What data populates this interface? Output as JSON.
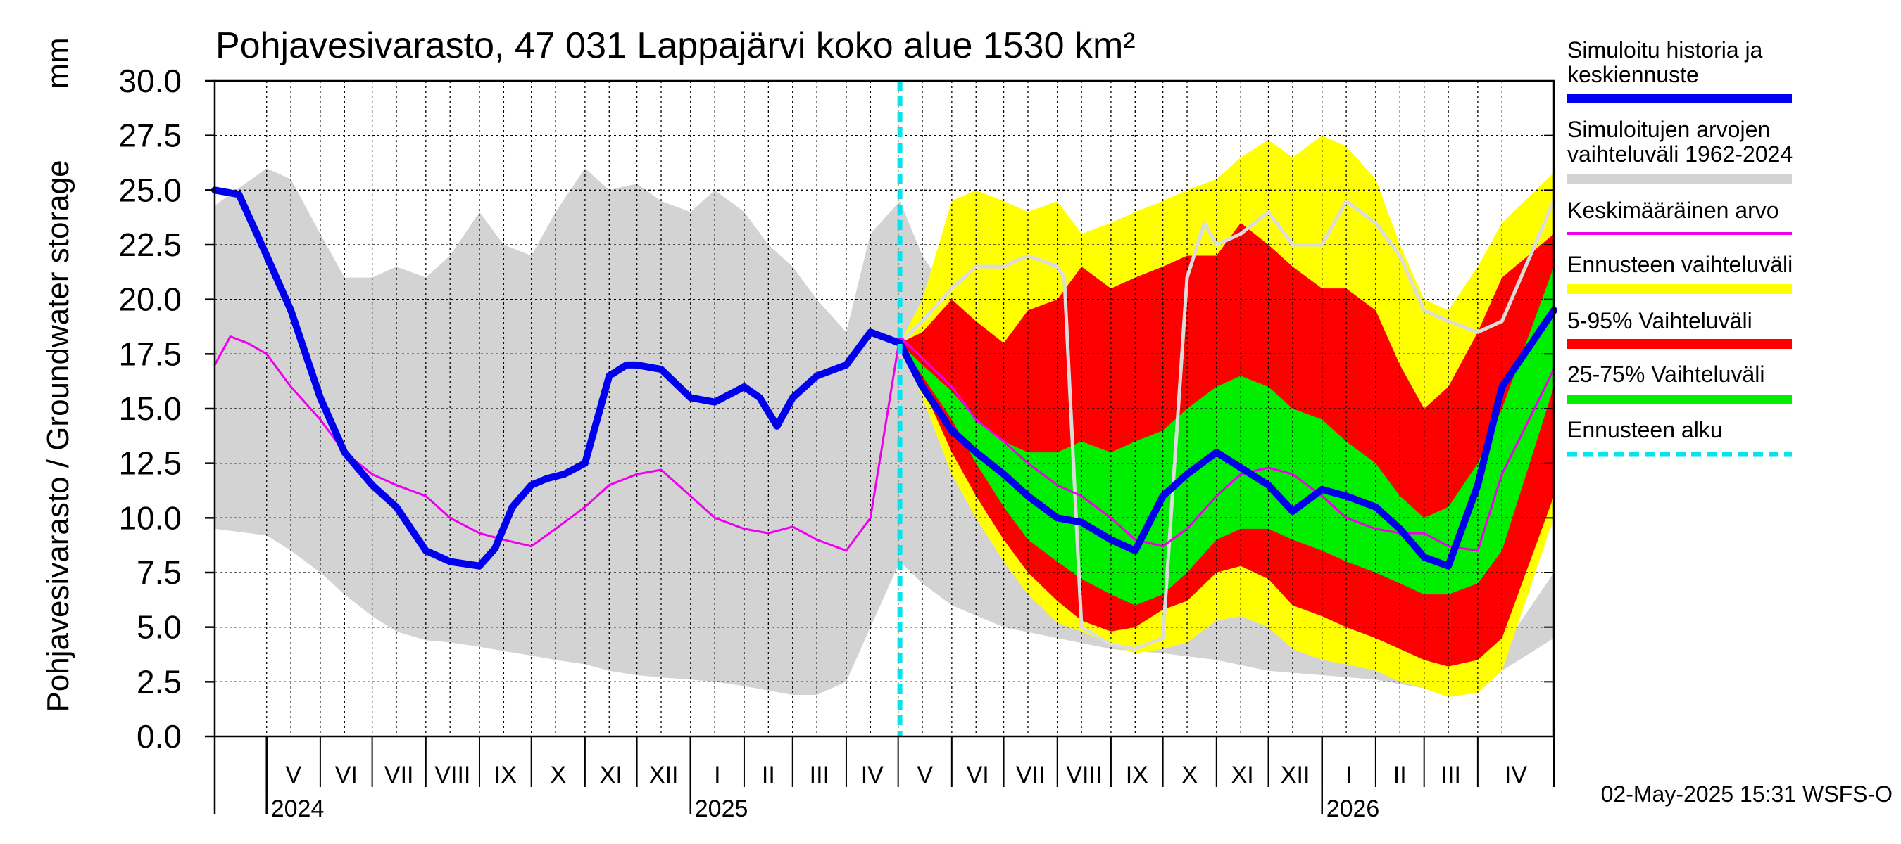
{
  "chart_data": {
    "type": "area",
    "title": "Pohjavesivarasto, 47 031 Lappajärvi koko alue 1530 km²",
    "ylabel": "Pohjavesivarasto / Groundwater storage",
    "yunit": "mm",
    "ylim": [
      0,
      30
    ],
    "yticks": [
      "0.0",
      "2.5",
      "5.0",
      "7.5",
      "10.0",
      "12.5",
      "15.0",
      "17.5",
      "20.0",
      "22.5",
      "25.0",
      "27.5",
      "30.0"
    ],
    "x_start": "2024-04-01",
    "x_end": "2026-05-15",
    "forecast_start": "2025-05-02",
    "months": [
      {
        "label": "V",
        "start": "2024-05-01"
      },
      {
        "label": "VI",
        "start": "2024-06-01"
      },
      {
        "label": "VII",
        "start": "2024-07-01"
      },
      {
        "label": "VIII",
        "start": "2024-08-01"
      },
      {
        "label": "IX",
        "start": "2024-09-01"
      },
      {
        "label": "X",
        "start": "2024-10-01"
      },
      {
        "label": "XI",
        "start": "2024-11-01"
      },
      {
        "label": "XII",
        "start": "2024-12-01"
      },
      {
        "label": "I",
        "start": "2025-01-01"
      },
      {
        "label": "II",
        "start": "2025-02-01"
      },
      {
        "label": "III",
        "start": "2025-03-01"
      },
      {
        "label": "IV",
        "start": "2025-04-01"
      },
      {
        "label": "V",
        "start": "2025-05-01"
      },
      {
        "label": "VI",
        "start": "2025-06-01"
      },
      {
        "label": "VII",
        "start": "2025-07-01"
      },
      {
        "label": "VIII",
        "start": "2025-08-01"
      },
      {
        "label": "IX",
        "start": "2025-09-01"
      },
      {
        "label": "X",
        "start": "2025-10-01"
      },
      {
        "label": "XI",
        "start": "2025-11-01"
      },
      {
        "label": "XII",
        "start": "2025-12-01"
      },
      {
        "label": "I",
        "start": "2026-01-01"
      },
      {
        "label": "II",
        "start": "2026-02-01"
      },
      {
        "label": "III",
        "start": "2026-03-01"
      },
      {
        "label": "IV",
        "start": "2026-04-01"
      }
    ],
    "years": [
      {
        "label": "2024",
        "start": "2024-05-01"
      },
      {
        "label": "2025",
        "start": "2025-01-01"
      },
      {
        "label": "2026",
        "start": "2026-01-01"
      }
    ],
    "bands": [
      {
        "key": "hist_range",
        "color": "#d3d3d3",
        "x": [
          "2024-04-01",
          "2024-05-01",
          "2024-05-15",
          "2024-06-01",
          "2024-06-15",
          "2024-07-01",
          "2024-07-15",
          "2024-08-01",
          "2024-08-15",
          "2024-09-01",
          "2024-09-15",
          "2024-10-01",
          "2024-10-15",
          "2024-11-01",
          "2024-11-15",
          "2024-12-01",
          "2024-12-15",
          "2025-01-01",
          "2025-01-15",
          "2025-02-01",
          "2025-02-15",
          "2025-03-01",
          "2025-03-15",
          "2025-04-01",
          "2025-04-15",
          "2025-05-02",
          "2025-05-15",
          "2025-06-01",
          "2025-07-01",
          "2025-08-01",
          "2025-09-01",
          "2025-10-01",
          "2025-11-01",
          "2025-12-01",
          "2026-01-01",
          "2026-02-01",
          "2026-03-01",
          "2026-03-15",
          "2026-04-01",
          "2026-04-15",
          "2026-05-15"
        ],
        "upper": [
          24.3,
          26.0,
          25.5,
          23.0,
          21.0,
          21.0,
          21.5,
          21.0,
          22.0,
          24.0,
          22.5,
          22.0,
          24.0,
          26.0,
          25.0,
          25.3,
          24.5,
          24.0,
          25.0,
          24.0,
          22.5,
          21.5,
          20.0,
          18.5,
          23.0,
          24.5,
          22.0,
          20.0,
          18.5,
          17.5,
          17.0,
          16.5,
          15.5,
          15.0,
          14.5,
          14.0,
          13.0,
          10.0,
          6.0,
          4.0,
          7.5
        ],
        "lower": [
          9.5,
          9.2,
          8.5,
          7.5,
          6.5,
          5.5,
          4.8,
          4.4,
          4.3,
          4.1,
          3.9,
          3.7,
          3.5,
          3.3,
          3.0,
          2.8,
          2.7,
          2.6,
          2.5,
          2.3,
          2.1,
          1.9,
          1.9,
          2.5,
          5.0,
          8.0,
          7.0,
          6.0,
          5.0,
          4.5,
          4.0,
          3.8,
          3.5,
          3.0,
          2.8,
          2.6,
          2.2,
          2.1,
          2.2,
          3.0,
          4.5
        ]
      },
      {
        "key": "forecast_range",
        "color": "#ffff00",
        "x": [
          "2025-05-02",
          "2025-05-15",
          "2025-06-01",
          "2025-06-15",
          "2025-07-01",
          "2025-07-15",
          "2025-08-01",
          "2025-08-15",
          "2025-09-01",
          "2025-09-15",
          "2025-10-01",
          "2025-10-15",
          "2025-11-01",
          "2025-11-15",
          "2025-12-01",
          "2025-12-15",
          "2026-01-01",
          "2026-01-15",
          "2026-02-01",
          "2026-02-15",
          "2026-03-01",
          "2026-03-15",
          "2026-04-01",
          "2026-04-15",
          "2026-05-15"
        ],
        "upper": [
          18.0,
          20.0,
          24.5,
          25.0,
          24.5,
          24.0,
          24.5,
          23.0,
          23.5,
          24.0,
          24.5,
          25.0,
          25.5,
          26.5,
          27.3,
          26.5,
          27.5,
          27.0,
          25.5,
          22.5,
          20.0,
          19.5,
          21.5,
          23.5,
          25.8
        ],
        "lower": [
          18.0,
          15.5,
          12.0,
          10.0,
          8.0,
          6.5,
          5.2,
          4.8,
          4.2,
          3.8,
          4.0,
          4.3,
          5.3,
          5.5,
          5.0,
          4.0,
          3.5,
          3.3,
          3.0,
          2.5,
          2.2,
          1.8,
          2.0,
          3.0,
          10.0
        ]
      },
      {
        "key": "p5_95",
        "color": "#ff0000",
        "x": [
          "2025-05-02",
          "2025-05-15",
          "2025-06-01",
          "2025-06-15",
          "2025-07-01",
          "2025-07-15",
          "2025-08-01",
          "2025-08-15",
          "2025-09-01",
          "2025-09-15",
          "2025-10-01",
          "2025-10-15",
          "2025-11-01",
          "2025-11-15",
          "2025-12-01",
          "2025-12-15",
          "2026-01-01",
          "2026-01-15",
          "2026-02-01",
          "2026-02-15",
          "2026-03-01",
          "2026-03-15",
          "2026-04-01",
          "2026-04-15",
          "2026-05-15"
        ],
        "upper": [
          18.0,
          18.5,
          20.0,
          19.0,
          18.0,
          19.5,
          20.0,
          21.5,
          20.5,
          21.0,
          21.5,
          22.0,
          22.0,
          23.5,
          22.5,
          21.5,
          20.5,
          20.5,
          19.5,
          17.0,
          15.0,
          16.0,
          18.5,
          21.0,
          23.0
        ],
        "lower": [
          18.0,
          16.0,
          13.0,
          11.0,
          9.0,
          7.5,
          6.2,
          5.3,
          4.8,
          5.0,
          5.8,
          6.2,
          7.5,
          7.8,
          7.2,
          6.0,
          5.5,
          5.0,
          4.5,
          4.0,
          3.5,
          3.2,
          3.5,
          4.5,
          11.0
        ]
      },
      {
        "key": "p25_75",
        "color": "#00ee00",
        "x": [
          "2025-05-02",
          "2025-05-15",
          "2025-06-01",
          "2025-06-15",
          "2025-07-01",
          "2025-07-15",
          "2025-08-01",
          "2025-08-15",
          "2025-09-01",
          "2025-09-15",
          "2025-10-01",
          "2025-10-15",
          "2025-11-01",
          "2025-11-15",
          "2025-12-01",
          "2025-12-15",
          "2026-01-01",
          "2026-01-15",
          "2026-02-01",
          "2026-02-15",
          "2026-03-01",
          "2026-03-15",
          "2026-04-01",
          "2026-04-15",
          "2026-05-15"
        ],
        "upper": [
          18.0,
          17.0,
          15.8,
          14.5,
          13.5,
          13.0,
          13.0,
          13.5,
          13.0,
          13.5,
          14.0,
          15.0,
          16.0,
          16.5,
          16.0,
          15.0,
          14.5,
          13.5,
          12.5,
          11.0,
          10.0,
          10.5,
          12.5,
          15.0,
          21.5
        ],
        "lower": [
          18.0,
          16.5,
          14.5,
          12.5,
          10.5,
          9.0,
          8.0,
          7.2,
          6.5,
          6.0,
          6.5,
          7.5,
          9.0,
          9.5,
          9.5,
          9.0,
          8.5,
          8.0,
          7.5,
          7.0,
          6.5,
          6.5,
          7.0,
          8.5,
          16.0
        ]
      }
    ],
    "series": [
      {
        "key": "gray_line",
        "color": "#dcdcdc",
        "width": 5,
        "x": [
          "2025-05-02",
          "2025-05-15",
          "2025-06-01",
          "2025-06-15",
          "2025-07-01",
          "2025-07-15",
          "2025-08-01",
          "2025-08-05",
          "2025-08-15",
          "2025-09-01",
          "2025-09-15",
          "2025-10-01",
          "2025-10-15",
          "2025-10-25",
          "2025-11-01",
          "2025-11-15",
          "2025-12-01",
          "2025-12-15",
          "2026-01-01",
          "2026-01-15",
          "2026-02-01",
          "2026-02-15",
          "2026-03-01",
          "2026-03-15",
          "2026-04-01",
          "2026-04-15",
          "2026-05-15"
        ],
        "values": [
          18.0,
          19.0,
          20.5,
          21.5,
          21.5,
          22.0,
          21.5,
          21.0,
          5.0,
          4.2,
          4.0,
          4.5,
          21.0,
          23.5,
          22.5,
          23.0,
          24.0,
          22.5,
          22.5,
          24.5,
          23.5,
          22.0,
          19.5,
          19.0,
          18.5,
          19.0,
          24.5
        ]
      },
      {
        "key": "mean",
        "name": "Keskimääräinen arvo",
        "color": "#ee00ee",
        "width": 3,
        "x": [
          "2024-04-01",
          "2024-04-10",
          "2024-04-20",
          "2024-05-01",
          "2024-05-15",
          "2024-06-01",
          "2024-06-15",
          "2024-07-01",
          "2024-07-15",
          "2024-08-01",
          "2024-08-15",
          "2024-09-01",
          "2024-09-15",
          "2024-10-01",
          "2024-10-15",
          "2024-11-01",
          "2024-11-15",
          "2024-12-01",
          "2024-12-15",
          "2025-01-01",
          "2025-01-15",
          "2025-02-01",
          "2025-02-15",
          "2025-03-01",
          "2025-03-15",
          "2025-04-01",
          "2025-04-15",
          "2025-05-02",
          "2025-05-15",
          "2025-06-01",
          "2025-06-15",
          "2025-07-01",
          "2025-07-15",
          "2025-08-01",
          "2025-08-15",
          "2025-09-01",
          "2025-09-15",
          "2025-10-01",
          "2025-10-15",
          "2025-11-01",
          "2025-11-15",
          "2025-12-01",
          "2025-12-15",
          "2026-01-01",
          "2026-01-15",
          "2026-02-01",
          "2026-02-15",
          "2026-03-01",
          "2026-03-15",
          "2026-04-01",
          "2026-04-15",
          "2026-05-15"
        ],
        "values": [
          17.0,
          18.3,
          18.0,
          17.5,
          16.0,
          14.5,
          13.0,
          12.0,
          11.5,
          11.0,
          10.0,
          9.3,
          9.0,
          8.7,
          9.5,
          10.5,
          11.5,
          12.0,
          12.2,
          11.0,
          10.0,
          9.5,
          9.3,
          9.6,
          9.0,
          8.5,
          10.0,
          18.3,
          17.3,
          16.0,
          14.5,
          13.5,
          12.5,
          11.5,
          11.0,
          10.0,
          9.0,
          8.7,
          9.5,
          11.0,
          12.0,
          12.3,
          12.0,
          11.0,
          10.0,
          9.5,
          9.3,
          9.3,
          8.7,
          8.5,
          12.0,
          16.8
        ]
      },
      {
        "key": "simulated",
        "name": "Simuloitu historia ja keskiennuste",
        "color": "#0000ee",
        "width": 10,
        "x": [
          "2024-04-01",
          "2024-04-15",
          "2024-05-01",
          "2024-05-15",
          "2024-06-01",
          "2024-06-15",
          "2024-07-01",
          "2024-07-15",
          "2024-08-01",
          "2024-08-15",
          "2024-09-01",
          "2024-09-10",
          "2024-09-20",
          "2024-10-01",
          "2024-10-10",
          "2024-10-20",
          "2024-11-01",
          "2024-11-15",
          "2024-11-25",
          "2024-12-01",
          "2024-12-15",
          "2025-01-01",
          "2025-01-15",
          "2025-02-01",
          "2025-02-10",
          "2025-02-20",
          "2025-03-01",
          "2025-03-15",
          "2025-04-01",
          "2025-04-15",
          "2025-05-02",
          "2025-05-15",
          "2025-06-01",
          "2025-06-15",
          "2025-07-01",
          "2025-07-15",
          "2025-08-01",
          "2025-08-15",
          "2025-09-01",
          "2025-09-15",
          "2025-10-01",
          "2025-10-15",
          "2025-11-01",
          "2025-11-15",
          "2025-12-01",
          "2025-12-15",
          "2026-01-01",
          "2026-01-15",
          "2026-02-01",
          "2026-02-15",
          "2026-03-01",
          "2026-03-15",
          "2026-04-01",
          "2026-04-15",
          "2026-05-15"
        ],
        "values": [
          25.0,
          24.8,
          22.0,
          19.5,
          15.5,
          13.0,
          11.5,
          10.5,
          8.5,
          8.0,
          7.8,
          8.6,
          10.5,
          11.5,
          11.8,
          12.0,
          12.5,
          16.5,
          17.0,
          17.0,
          16.8,
          15.5,
          15.3,
          16.0,
          15.5,
          14.2,
          15.5,
          16.5,
          17.0,
          18.5,
          18.0,
          16.0,
          14.0,
          13.0,
          12.0,
          11.0,
          10.0,
          9.8,
          9.0,
          8.5,
          11.0,
          12.0,
          13.0,
          12.3,
          11.5,
          10.3,
          11.3,
          11.0,
          10.5,
          9.5,
          8.2,
          7.8,
          11.5,
          16.0,
          19.5
        ]
      }
    ],
    "legend": [
      {
        "label": "Simuloitu historia ja keskiennuste",
        "color": "#0000ee",
        "style": "solid"
      },
      {
        "label": "Simuloitujen arvojen vaihteluväli 1962-2024",
        "color": "#d3d3d3",
        "style": "solid"
      },
      {
        "label": "Keskimääräinen arvo",
        "color": "#ee00ee",
        "style": "thin"
      },
      {
        "label": "Ennusteen vaihteluväli",
        "color": "#ffff00",
        "style": "solid"
      },
      {
        "label": "5-95% Vaihteluväli",
        "color": "#ff0000",
        "style": "solid"
      },
      {
        "label": "25-75% Vaihteluväli",
        "color": "#00ee00",
        "style": "solid"
      },
      {
        "label": "Ennusteen alku",
        "color": "#00e5ee",
        "style": "dashed"
      }
    ],
    "footer": "02-May-2025 15:31 WSFS-O",
    "grid": true
  }
}
